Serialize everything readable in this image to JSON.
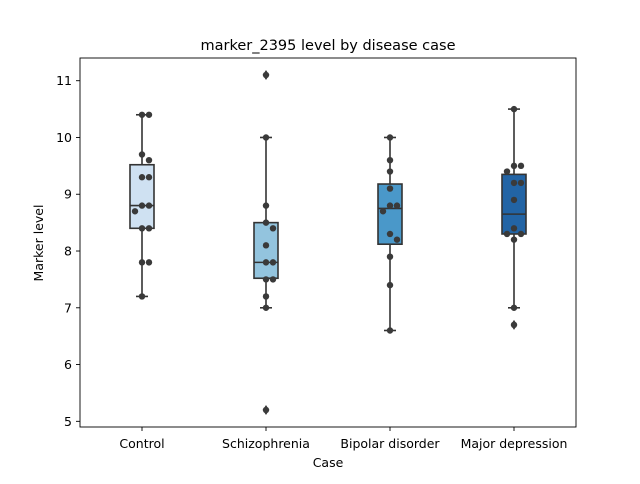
{
  "chart_data": {
    "type": "box",
    "title": "marker_2395 level by disease case",
    "xlabel": "Case",
    "ylabel": "Marker level",
    "ylim": [
      4.9,
      11.4
    ],
    "yticks": [
      5,
      6,
      7,
      8,
      9,
      10,
      11
    ],
    "categories": [
      "Control",
      "Schizophrenia",
      "Bipolar disorder",
      "Major depression"
    ],
    "colors": [
      "#cfe1f2",
      "#93c4de",
      "#4a98c9",
      "#2264a5"
    ],
    "grid": false,
    "legend": "none",
    "boxes": [
      {
        "q1": 8.4,
        "median": 8.8,
        "q3": 9.52,
        "whisker_low": 7.2,
        "whisker_high": 10.4,
        "outliers": []
      },
      {
        "q1": 7.52,
        "median": 7.8,
        "q3": 8.5,
        "whisker_low": 7.0,
        "whisker_high": 10.0,
        "outliers": [
          11.1,
          5.2
        ]
      },
      {
        "q1": 8.12,
        "median": 8.75,
        "q3": 9.18,
        "whisker_low": 6.6,
        "whisker_high": 10.0,
        "outliers": []
      },
      {
        "q1": 8.3,
        "median": 8.65,
        "q3": 9.35,
        "whisker_low": 7.0,
        "whisker_high": 10.5,
        "outliers": [
          6.7
        ]
      }
    ],
    "points": [
      [
        10.4,
        10.4,
        9.7,
        9.6,
        9.3,
        9.3,
        8.8,
        8.8,
        8.7,
        8.4,
        8.4,
        7.8,
        7.8,
        7.2
      ],
      [
        11.1,
        10.0,
        8.8,
        8.5,
        8.4,
        8.1,
        7.8,
        7.8,
        7.5,
        7.5,
        7.2,
        7.0,
        5.2
      ],
      [
        10.0,
        9.6,
        9.4,
        9.1,
        8.8,
        8.8,
        8.7,
        8.3,
        8.2,
        7.9,
        7.4,
        6.6
      ],
      [
        10.5,
        9.5,
        9.5,
        9.4,
        9.2,
        9.2,
        8.9,
        8.4,
        8.3,
        8.3,
        8.2,
        7.0,
        6.7
      ]
    ]
  }
}
